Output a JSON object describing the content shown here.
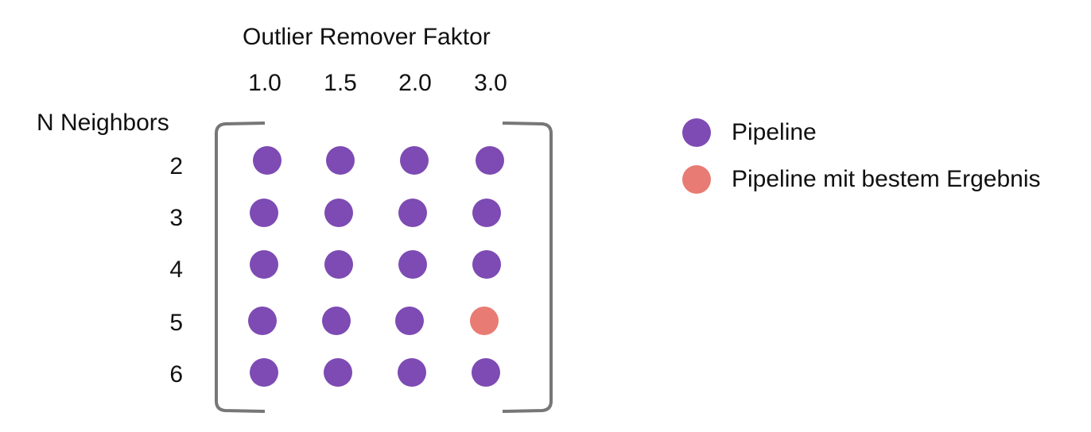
{
  "column_axis_title": "Outlier Remover Faktor",
  "column_labels": [
    "1.0",
    "1.5",
    "2.0",
    "3.0"
  ],
  "row_axis_title": "N Neighbors",
  "row_labels": [
    "2",
    "3",
    "4",
    "5",
    "6"
  ],
  "best": {
    "row": "5",
    "column": "3.0"
  },
  "colors": {
    "pipeline": "#7d4bb3",
    "best": "#e87b73",
    "bracket": "#777777"
  },
  "legend": [
    {
      "label": "Pipeline",
      "color": "#7d4bb3"
    },
    {
      "label": "Pipeline mit bestem Ergebnis",
      "color": "#e87b73"
    }
  ]
}
